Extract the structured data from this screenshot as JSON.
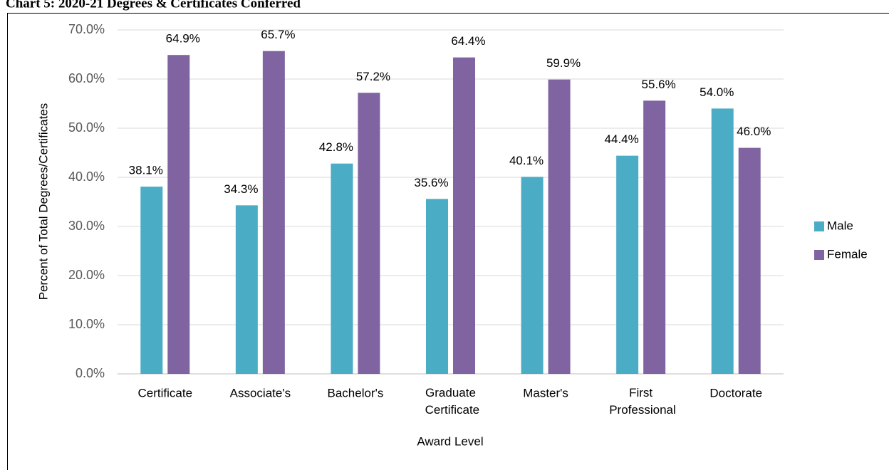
{
  "chart_data": {
    "type": "bar",
    "title": "Chart 5: 2020-21 Degrees & Certificates Conferred",
    "x_label": "Award Level",
    "y_label": "Percent of Total Degrees/Certificates",
    "categories": [
      "Certificate",
      "Associate's",
      "Bachelor's",
      "Graduate Certificate",
      "Master's",
      "First Professional",
      "Doctorate"
    ],
    "series": [
      {
        "name": "Male",
        "color": "#4bacc6",
        "values": [
          38.1,
          34.3,
          42.8,
          35.6,
          40.1,
          44.4,
          54.0
        ],
        "value_labels": [
          "38.1%",
          "34.3%",
          "42.8%",
          "35.6%",
          "40.1%",
          "44.4%",
          "54.0%"
        ]
      },
      {
        "name": "Female",
        "color": "#8064a2",
        "values": [
          64.9,
          65.7,
          57.2,
          64.4,
          59.9,
          55.6,
          46.0
        ],
        "value_labels": [
          "64.9%",
          "65.7%",
          "57.2%",
          "64.4%",
          "59.9%",
          "55.6%",
          "46.0%"
        ]
      }
    ],
    "ylim": [
      0,
      70
    ],
    "yticks": [
      {
        "value": 0,
        "label": "0.0%"
      },
      {
        "value": 10,
        "label": "10.0%"
      },
      {
        "value": 20,
        "label": "20.0%"
      },
      {
        "value": 30,
        "label": "30.0%"
      },
      {
        "value": 40,
        "label": "40.0%"
      },
      {
        "value": 50,
        "label": "50.0%"
      },
      {
        "value": 60,
        "label": "60.0%"
      },
      {
        "value": 70,
        "label": "70.0%"
      }
    ],
    "grid": true,
    "legend": "right"
  }
}
